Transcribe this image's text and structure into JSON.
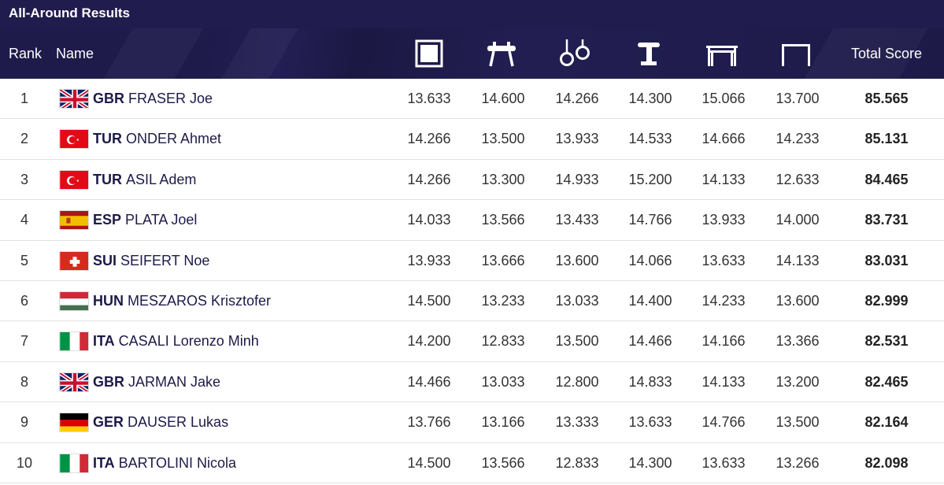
{
  "page": {
    "title": "All-Around Results"
  },
  "header": {
    "rank_label": "Rank",
    "name_label": "Name",
    "apparatus": [
      {
        "icon": "floor-exercise-icon"
      },
      {
        "icon": "pommel-horse-icon"
      },
      {
        "icon": "rings-icon"
      },
      {
        "icon": "vault-icon"
      },
      {
        "icon": "parallel-bars-icon"
      },
      {
        "icon": "horizontal-bar-icon"
      }
    ],
    "total_label": "Total Score"
  },
  "rows": [
    {
      "rank": "1",
      "flag": "gbr-flag-icon",
      "noc": "GBR",
      "name": "FRASER Joe",
      "scores": [
        "13.633",
        "14.600",
        "14.266",
        "14.300",
        "15.066",
        "13.700"
      ],
      "total": "85.565"
    },
    {
      "rank": "2",
      "flag": "tur-flag-icon",
      "noc": "TUR",
      "name": "ONDER Ahmet",
      "scores": [
        "14.266",
        "13.500",
        "13.933",
        "14.533",
        "14.666",
        "14.233"
      ],
      "total": "85.131"
    },
    {
      "rank": "3",
      "flag": "tur-flag-icon",
      "noc": "TUR",
      "name": "ASIL Adem",
      "scores": [
        "14.266",
        "13.300",
        "14.933",
        "15.200",
        "14.133",
        "12.633"
      ],
      "total": "84.465"
    },
    {
      "rank": "4",
      "flag": "esp-flag-icon",
      "noc": "ESP",
      "name": "PLATA Joel",
      "scores": [
        "14.033",
        "13.566",
        "13.433",
        "14.766",
        "13.933",
        "14.000"
      ],
      "total": "83.731"
    },
    {
      "rank": "5",
      "flag": "sui-flag-icon",
      "noc": "SUI",
      "name": "SEIFERT Noe",
      "scores": [
        "13.933",
        "13.666",
        "13.600",
        "14.066",
        "13.633",
        "14.133"
      ],
      "total": "83.031"
    },
    {
      "rank": "6",
      "flag": "hun-flag-icon",
      "noc": "HUN",
      "name": "MESZAROS Krisztofer",
      "scores": [
        "14.500",
        "13.233",
        "13.033",
        "14.400",
        "14.233",
        "13.600"
      ],
      "total": "82.999"
    },
    {
      "rank": "7",
      "flag": "ita-flag-icon",
      "noc": "ITA",
      "name": "CASALI Lorenzo Minh",
      "scores": [
        "14.200",
        "12.833",
        "13.500",
        "14.466",
        "14.166",
        "13.366"
      ],
      "total": "82.531"
    },
    {
      "rank": "8",
      "flag": "gbr-flag-icon",
      "noc": "GBR",
      "name": "JARMAN Jake",
      "scores": [
        "14.466",
        "13.033",
        "12.800",
        "14.833",
        "14.133",
        "13.200"
      ],
      "total": "82.465"
    },
    {
      "rank": "9",
      "flag": "ger-flag-icon",
      "noc": "GER",
      "name": "DAUSER Lukas",
      "scores": [
        "13.766",
        "13.166",
        "13.333",
        "13.633",
        "14.766",
        "13.500"
      ],
      "total": "82.164"
    },
    {
      "rank": "10",
      "flag": "ita-flag-icon",
      "noc": "ITA",
      "name": "BARTOLINI Nicola",
      "scores": [
        "14.500",
        "13.566",
        "12.833",
        "14.300",
        "13.633",
        "13.266"
      ],
      "total": "82.098"
    }
  ],
  "colors": {
    "header_bg": "#1d1a48",
    "title_bg": "#201c4e",
    "name_text": "#1d1a48"
  }
}
